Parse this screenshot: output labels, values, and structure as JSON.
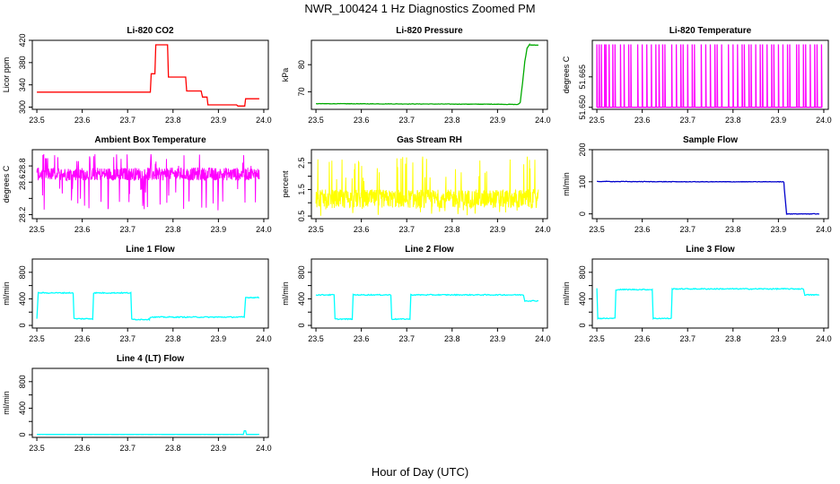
{
  "figure": {
    "title": "NWR_100424  1 Hz Diagnostics Zoomed PM",
    "xlabel": "Hour of Day (UTC)"
  },
  "chart_data": [
    {
      "type": "line",
      "id": "co2",
      "title": "Li-820 CO2",
      "ylabel": "Licor ppm",
      "color": "#ff0000",
      "xlim": [
        23.49,
        24.01
      ],
      "ylim": [
        296,
        420
      ],
      "xticks": [
        23.5,
        23.6,
        23.7,
        23.8,
        23.9,
        24.0
      ],
      "xtick_labels": [
        "23.5",
        "23.6",
        "23.7",
        "23.8",
        "23.9",
        "24.0"
      ],
      "yticks": [
        300,
        340,
        380,
        420
      ],
      "ytick_labels": [
        "300",
        "340",
        "380",
        "420"
      ],
      "shape": "step",
      "x": [
        23.5,
        23.75,
        23.752,
        23.76,
        23.762,
        23.788,
        23.79,
        23.828,
        23.83,
        23.862,
        23.865,
        23.875,
        23.877,
        23.94,
        23.943,
        23.958,
        23.96,
        23.99
      ],
      "y": [
        327,
        327,
        360,
        360,
        412,
        412,
        354,
        354,
        329,
        329,
        318,
        318,
        304,
        304,
        302,
        302,
        315,
        315
      ]
    },
    {
      "type": "line",
      "id": "pressure",
      "title": "Li-820 Pressure",
      "ylabel": "kPa",
      "color": "#00aa00",
      "xlim": [
        23.49,
        24.01
      ],
      "ylim": [
        63.5,
        89
      ],
      "xticks": [
        23.5,
        23.6,
        23.7,
        23.8,
        23.9,
        24.0
      ],
      "xtick_labels": [
        "23.5",
        "23.6",
        "23.7",
        "23.8",
        "23.9",
        "24.0"
      ],
      "yticks": [
        70,
        80
      ],
      "ytick_labels": [
        "70",
        "80"
      ],
      "shape": "noisy",
      "x": [
        23.5,
        23.9,
        23.945,
        23.95,
        23.955,
        23.96,
        23.965,
        23.97,
        23.99
      ],
      "y": [
        65.6,
        65.4,
        65.3,
        66,
        73,
        81,
        86,
        87.3,
        87.2
      ],
      "noise": 0.15
    },
    {
      "type": "line",
      "id": "temperature",
      "title": "Li-820 Temperature",
      "ylabel": "degrees C",
      "color": "#ff00ff",
      "xlim": [
        23.49,
        24.01
      ],
      "ylim": [
        51.649,
        51.683
      ],
      "xticks": [
        23.5,
        23.6,
        23.7,
        23.8,
        23.9,
        24.0
      ],
      "xtick_labels": [
        "23.5",
        "23.6",
        "23.7",
        "23.8",
        "23.9",
        "24.0"
      ],
      "yticks": [
        51.65,
        51.665
      ],
      "ytick_labels": [
        "51.650",
        "51.665"
      ],
      "shape": "toggle",
      "low": 51.65,
      "high": 51.681,
      "x": [
        23.5,
        23.505,
        23.51,
        23.517,
        23.52,
        23.527,
        23.535,
        23.54,
        23.552,
        23.56,
        23.57,
        23.575,
        23.59,
        23.6,
        23.61,
        23.62,
        23.63,
        23.637,
        23.645,
        23.65,
        23.665,
        23.675,
        23.685,
        23.69,
        23.7,
        23.71,
        23.715,
        23.73,
        23.74,
        23.75,
        23.76,
        23.765,
        23.775,
        23.79,
        23.8,
        23.81,
        23.82,
        23.825,
        23.835,
        23.84,
        23.85,
        23.86,
        23.865,
        23.875,
        23.885,
        23.89,
        23.9,
        23.91,
        23.92,
        23.925,
        23.94,
        23.945,
        23.955,
        23.96,
        23.97,
        23.98,
        23.985,
        23.995
      ]
    },
    {
      "type": "line",
      "id": "ambient",
      "title": "Ambient Box Temperature",
      "ylabel": "degrees C",
      "color": "#ff00ff",
      "xlim": [
        23.49,
        24.01
      ],
      "ylim": [
        28.15,
        29.0
      ],
      "xticks": [
        23.5,
        23.6,
        23.7,
        23.8,
        23.9,
        24.0
      ],
      "xtick_labels": [
        "23.5",
        "23.6",
        "23.7",
        "23.8",
        "23.9",
        "24.0"
      ],
      "yticks": [
        28.2,
        28.4,
        28.6,
        28.8
      ],
      "ytick_labels": [
        "28.2",
        "",
        "28.6",
        "28.8"
      ],
      "shape": "band",
      "x": [
        23.5,
        23.99
      ],
      "center": 28.7,
      "spread": 0.08,
      "spike_low": 28.25,
      "spike_high": 28.95
    },
    {
      "type": "line",
      "id": "rh",
      "title": "Gas Stream RH",
      "ylabel": "percent",
      "color": "#ffff00",
      "xlim": [
        23.49,
        24.01
      ],
      "ylim": [
        0.4,
        3.0
      ],
      "xticks": [
        23.5,
        23.6,
        23.7,
        23.8,
        23.9,
        24.0
      ],
      "xtick_labels": [
        "23.5",
        "23.6",
        "23.7",
        "23.8",
        "23.9",
        "24.0"
      ],
      "yticks": [
        0.5,
        1.0,
        1.5,
        2.0,
        2.5
      ],
      "ytick_labels": [
        "0.5",
        "",
        "1.5",
        "",
        "2.5"
      ],
      "shape": "band",
      "x": [
        23.5,
        23.99
      ],
      "center": 1.15,
      "spread": 0.35,
      "spike_low": 0.5,
      "spike_high": 2.8
    },
    {
      "type": "line",
      "id": "sample_flow",
      "title": "Sample Flow",
      "ylabel": "ml/min",
      "color": "#0000cc",
      "xlim": [
        23.49,
        24.01
      ],
      "ylim": [
        -15,
        200
      ],
      "xticks": [
        23.5,
        23.6,
        23.7,
        23.8,
        23.9,
        24.0
      ],
      "xtick_labels": [
        "23.5",
        "23.6",
        "23.7",
        "23.8",
        "23.9",
        "24.0"
      ],
      "yticks": [
        0,
        100,
        200
      ],
      "ytick_labels": [
        "0",
        "100",
        "200"
      ],
      "shape": "noisy",
      "x": [
        23.5,
        23.7,
        23.912,
        23.913,
        23.918,
        23.99
      ],
      "y": [
        101,
        100,
        100,
        80,
        0,
        0
      ],
      "noise": 1.5
    },
    {
      "type": "line",
      "id": "line1",
      "title": "Line 1 Flow",
      "ylabel": "ml/min",
      "color": "#00ffff",
      "xlim": [
        23.49,
        24.01
      ],
      "ylim": [
        -40,
        1000
      ],
      "xticks": [
        23.5,
        23.6,
        23.7,
        23.8,
        23.9,
        24.0
      ],
      "xtick_labels": [
        "23.5",
        "23.6",
        "23.7",
        "23.8",
        "23.9",
        "24.0"
      ],
      "yticks": [
        0,
        200,
        400,
        600,
        800
      ],
      "ytick_labels": [
        "0",
        "",
        "400",
        "",
        "800"
      ],
      "shape": "step",
      "x": [
        23.5,
        23.5,
        23.503,
        23.58,
        23.582,
        23.623,
        23.625,
        23.707,
        23.709,
        23.748,
        23.75,
        23.957,
        23.96,
        23.99
      ],
      "y": [
        100,
        100,
        490,
        490,
        100,
        100,
        490,
        490,
        90,
        90,
        125,
        125,
        420,
        420
      ],
      "noise": 15
    },
    {
      "type": "line",
      "id": "line2",
      "title": "Line 2 Flow",
      "ylabel": "ml/min",
      "color": "#00ffff",
      "xlim": [
        23.49,
        24.01
      ],
      "ylim": [
        -40,
        1000
      ],
      "xticks": [
        23.5,
        23.6,
        23.7,
        23.8,
        23.9,
        24.0
      ],
      "xtick_labels": [
        "23.5",
        "23.6",
        "23.7",
        "23.8",
        "23.9",
        "24.0"
      ],
      "yticks": [
        0,
        200,
        400,
        600,
        800
      ],
      "ytick_labels": [
        "0",
        "",
        "400",
        "",
        "800"
      ],
      "shape": "step",
      "x": [
        23.5,
        23.54,
        23.542,
        23.58,
        23.582,
        23.665,
        23.667,
        23.707,
        23.709,
        23.957,
        23.96,
        23.99
      ],
      "y": [
        460,
        460,
        95,
        95,
        460,
        460,
        95,
        95,
        460,
        460,
        370,
        370
      ],
      "noise": 15
    },
    {
      "type": "line",
      "id": "line3",
      "title": "Line 3 Flow",
      "ylabel": "ml/min",
      "color": "#00ffff",
      "xlim": [
        23.49,
        24.01
      ],
      "ylim": [
        -40,
        1000
      ],
      "xticks": [
        23.5,
        23.6,
        23.7,
        23.8,
        23.9,
        24.0
      ],
      "xtick_labels": [
        "23.5",
        "23.6",
        "23.7",
        "23.8",
        "23.9",
        "24.0"
      ],
      "yticks": [
        0,
        200,
        400,
        600,
        800
      ],
      "ytick_labels": [
        "0",
        "",
        "400",
        "",
        "800"
      ],
      "shape": "step",
      "x": [
        23.5,
        23.5,
        23.502,
        23.54,
        23.542,
        23.622,
        23.624,
        23.664,
        23.666,
        23.955,
        23.958,
        23.99
      ],
      "y": [
        560,
        560,
        105,
        105,
        540,
        540,
        105,
        105,
        550,
        550,
        460,
        460
      ],
      "noise": 15
    },
    {
      "type": "line",
      "id": "line4",
      "title": "Line 4 (LT) Flow",
      "ylabel": "ml/min",
      "color": "#00ffff",
      "xlim": [
        23.49,
        24.01
      ],
      "ylim": [
        -40,
        1000
      ],
      "xticks": [
        23.5,
        23.6,
        23.7,
        23.8,
        23.9,
        24.0
      ],
      "xtick_labels": [
        "23.5",
        "23.6",
        "23.7",
        "23.8",
        "23.9",
        "24.0"
      ],
      "yticks": [
        0,
        200,
        400,
        600,
        800
      ],
      "ytick_labels": [
        "0",
        "",
        "400",
        "",
        "800"
      ],
      "shape": "step",
      "x": [
        23.5,
        23.955,
        23.957,
        23.96,
        23.962,
        23.99
      ],
      "y": [
        5,
        5,
        60,
        60,
        5,
        5
      ],
      "noise": 2
    }
  ]
}
